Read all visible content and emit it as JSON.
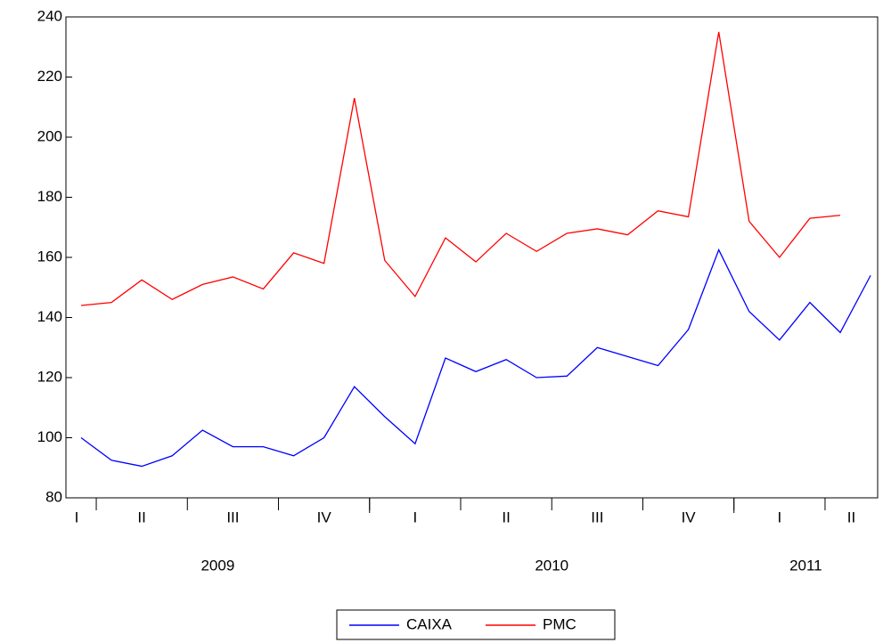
{
  "chart_data": {
    "type": "line",
    "ylim": [
      80,
      240
    ],
    "yticks": [
      80,
      100,
      120,
      140,
      160,
      180,
      200,
      220,
      240
    ],
    "quarter_labels": [
      "I",
      "II",
      "III",
      "IV",
      "I",
      "II",
      "III",
      "IV",
      "I",
      "II"
    ],
    "year_labels": [
      "2009",
      "2010",
      "2011"
    ],
    "series": [
      {
        "name": "CAIXA",
        "color": "#0000ff",
        "values": [
          100,
          92.5,
          90.5,
          94,
          102.5,
          97,
          97,
          94,
          100,
          117,
          107,
          98,
          126.5,
          122,
          126,
          120,
          120.5,
          130,
          127,
          124,
          136,
          162.5,
          142,
          132.5,
          145,
          135,
          154
        ]
      },
      {
        "name": "PMC",
        "color": "#ff0000",
        "values": [
          144,
          145,
          152.5,
          146,
          151,
          153.5,
          149.5,
          161.5,
          158,
          213,
          159,
          147,
          166.5,
          158.5,
          168,
          162,
          168,
          169.5,
          167.5,
          175.5,
          173.5,
          235,
          172,
          160,
          173,
          174,
          null
        ]
      }
    ]
  }
}
